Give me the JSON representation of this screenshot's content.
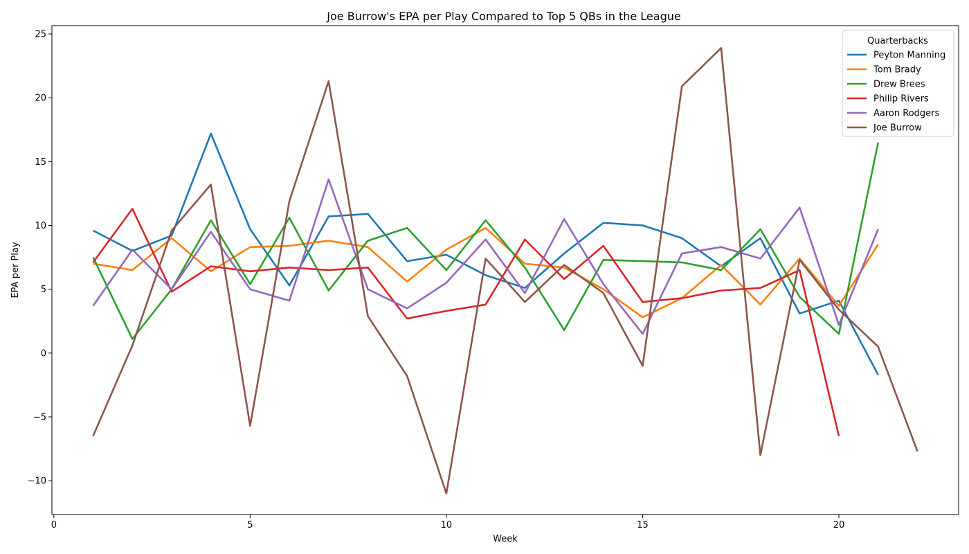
{
  "chart_data": {
    "type": "line",
    "title": "Joe Burrow's EPA per Play Compared to Top 5 QBs in the League",
    "xlabel": "Week",
    "ylabel": "EPA per Play",
    "xlim": [
      -0.05,
      23.05
    ],
    "ylim": [
      -12.65,
      25.65
    ],
    "xticks": [
      0,
      5,
      10,
      15,
      20
    ],
    "yticks": [
      -10,
      -5,
      0,
      5,
      10,
      15,
      20,
      25
    ],
    "xtick_labels": [
      "0",
      "5",
      "10",
      "15",
      "20"
    ],
    "ytick_labels": [
      "−10",
      "−5",
      "0",
      "5",
      "10",
      "15",
      "20",
      "25"
    ],
    "grid": false,
    "legend": {
      "title": "Quarterbacks",
      "position": "top-right"
    },
    "series": [
      {
        "name": "Peyton Manning",
        "color": "#1f77b4",
        "x": [
          1,
          2,
          3,
          4,
          5,
          6,
          7,
          8,
          9,
          10,
          11,
          12,
          13,
          14,
          15,
          16,
          17,
          18,
          19,
          20,
          21
        ],
        "values": [
          9.6,
          8.0,
          9.2,
          17.2,
          9.7,
          5.3,
          10.7,
          10.9,
          7.2,
          7.7,
          6.1,
          5.1,
          7.8,
          10.2,
          10.0,
          9.0,
          6.8,
          9.0,
          3.1,
          4.1,
          -1.7
        ]
      },
      {
        "name": "Tom Brady",
        "color": "#ff7f0e",
        "x": [
          1,
          2,
          3,
          4,
          5,
          6,
          7,
          8,
          9,
          10,
          11,
          12,
          13,
          14,
          15,
          16,
          17,
          18,
          19,
          20,
          21
        ],
        "values": [
          7.0,
          6.5,
          9.0,
          6.4,
          8.3,
          8.4,
          8.8,
          8.3,
          5.6,
          8.1,
          9.8,
          7.0,
          6.7,
          5.0,
          2.8,
          4.3,
          6.9,
          3.8,
          7.4,
          3.7,
          8.5
        ]
      },
      {
        "name": "Drew Brees",
        "color": "#2ca02c",
        "x": [
          1,
          2,
          3,
          4,
          5,
          6,
          7,
          8,
          9,
          10,
          11,
          12,
          13,
          14,
          15,
          16,
          17,
          18,
          19,
          20,
          21
        ],
        "values": [
          7.5,
          1.1,
          5.0,
          10.4,
          5.4,
          10.6,
          4.9,
          8.8,
          9.8,
          6.5,
          10.4,
          6.7,
          1.8,
          7.3,
          7.2,
          7.1,
          6.5,
          9.7,
          4.4,
          1.5,
          16.5
        ]
      },
      {
        "name": "Philip Rivers",
        "color": "#d62728",
        "x": [
          1,
          2,
          3,
          4,
          5,
          6,
          7,
          8,
          9,
          10,
          11,
          12,
          13,
          14,
          15,
          16,
          17,
          18,
          19,
          20
        ],
        "values": [
          7.1,
          11.3,
          4.8,
          6.8,
          6.4,
          6.7,
          6.5,
          6.7,
          2.7,
          3.3,
          3.8,
          8.9,
          5.8,
          8.4,
          4.0,
          4.3,
          4.9,
          5.1,
          6.5,
          -6.5
        ]
      },
      {
        "name": "Aaron Rodgers",
        "color": "#9467bd",
        "x": [
          1,
          2,
          3,
          4,
          5,
          6,
          7,
          8,
          9,
          10,
          11,
          12,
          13,
          14,
          15,
          16,
          17,
          18,
          19,
          20,
          21
        ],
        "values": [
          3.7,
          8.1,
          5.0,
          9.5,
          5.0,
          4.1,
          13.6,
          5.0,
          3.5,
          5.5,
          8.9,
          4.7,
          10.5,
          5.4,
          1.5,
          7.8,
          8.3,
          7.4,
          11.4,
          2.2,
          9.7
        ]
      },
      {
        "name": "Joe Burrow",
        "color": "#8c564b",
        "x": [
          1,
          2,
          3,
          4,
          5,
          6,
          7,
          8,
          9,
          10,
          11,
          12,
          13,
          14,
          15,
          16,
          17,
          18,
          19,
          20,
          21,
          22
        ],
        "values": [
          -6.5,
          0.6,
          9.6,
          13.2,
          -5.7,
          11.9,
          21.3,
          2.9,
          -1.8,
          -11.0,
          7.4,
          4.0,
          6.9,
          4.7,
          -1.0,
          20.9,
          23.9,
          -8.0,
          7.3,
          3.4,
          0.5,
          -7.7
        ]
      }
    ]
  }
}
